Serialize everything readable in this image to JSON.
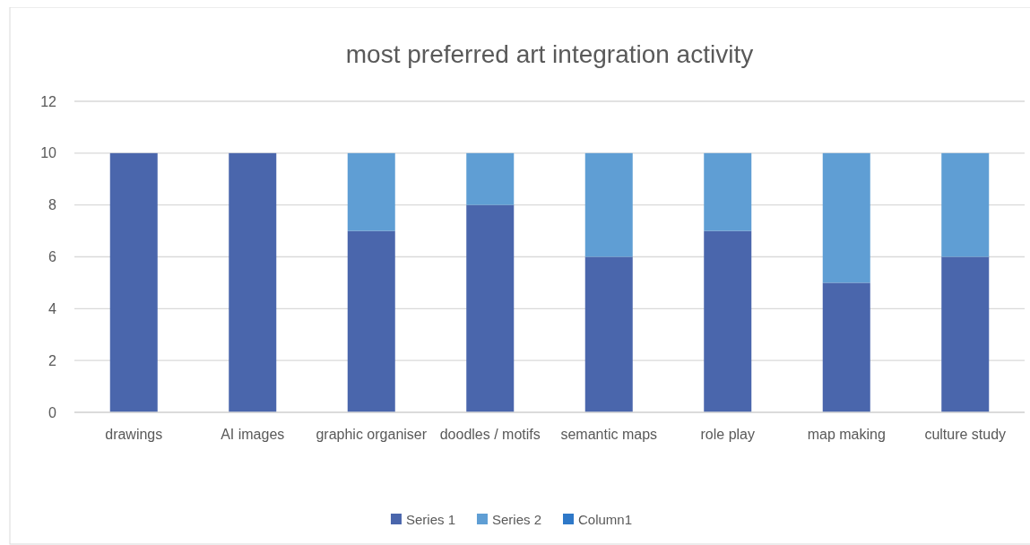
{
  "chart_data": {
    "type": "bar",
    "title": "most preferred art integration activity",
    "categories": [
      "drawings",
      "AI images",
      "graphic organiser",
      "doodles / motifs",
      "semantic maps",
      "role play",
      "map making",
      "culture study"
    ],
    "stacked": true,
    "series": [
      {
        "name": "Series 1",
        "color": "#4a66ac",
        "values": [
          10,
          10,
          7,
          8,
          6,
          7,
          5,
          6
        ]
      },
      {
        "name": "Series 2",
        "color": "#5f9ed4",
        "values": [
          0,
          0,
          3,
          2,
          4,
          3,
          5,
          4
        ]
      },
      {
        "name": "Column1",
        "color": "#2e78c8",
        "values": [
          null,
          null,
          null,
          null,
          null,
          null,
          null,
          null
        ]
      }
    ],
    "ylim": [
      0,
      12
    ],
    "yticks": [
      0,
      2,
      4,
      6,
      8,
      10,
      12
    ],
    "grid": "y",
    "legend": "bottom"
  }
}
